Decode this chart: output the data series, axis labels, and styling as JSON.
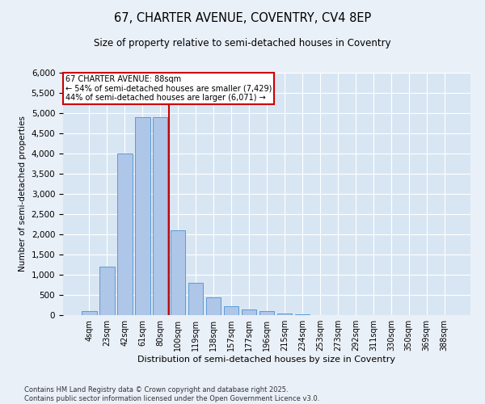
{
  "title1": "67, CHARTER AVENUE, COVENTRY, CV4 8EP",
  "title2": "Size of property relative to semi-detached houses in Coventry",
  "xlabel": "Distribution of semi-detached houses by size in Coventry",
  "ylabel": "Number of semi-detached properties",
  "categories": [
    "4sqm",
    "23sqm",
    "42sqm",
    "61sqm",
    "80sqm",
    "100sqm",
    "119sqm",
    "138sqm",
    "157sqm",
    "177sqm",
    "196sqm",
    "215sqm",
    "234sqm",
    "253sqm",
    "273sqm",
    "292sqm",
    "311sqm",
    "330sqm",
    "350sqm",
    "369sqm",
    "388sqm"
  ],
  "values": [
    100,
    1200,
    4000,
    4900,
    4900,
    2100,
    800,
    450,
    230,
    150,
    110,
    40,
    12,
    5,
    2,
    0,
    0,
    0,
    0,
    0,
    0
  ],
  "bar_color": "#aec6e8",
  "bar_edge_color": "#5b9bd5",
  "annotation_text": "67 CHARTER AVENUE: 88sqm\n← 54% of semi-detached houses are smaller (7,429)\n44% of semi-detached houses are larger (6,071) →",
  "vline_color": "#cc0000",
  "ylim": [
    0,
    6000
  ],
  "yticks": [
    0,
    500,
    1000,
    1500,
    2000,
    2500,
    3000,
    3500,
    4000,
    4500,
    5000,
    5500,
    6000
  ],
  "footnote1": "Contains HM Land Registry data © Crown copyright and database right 2025.",
  "footnote2": "Contains public sector information licensed under the Open Government Licence v3.0.",
  "bg_color": "#eaf0f8",
  "plot_bg_color": "#d8e6f3"
}
